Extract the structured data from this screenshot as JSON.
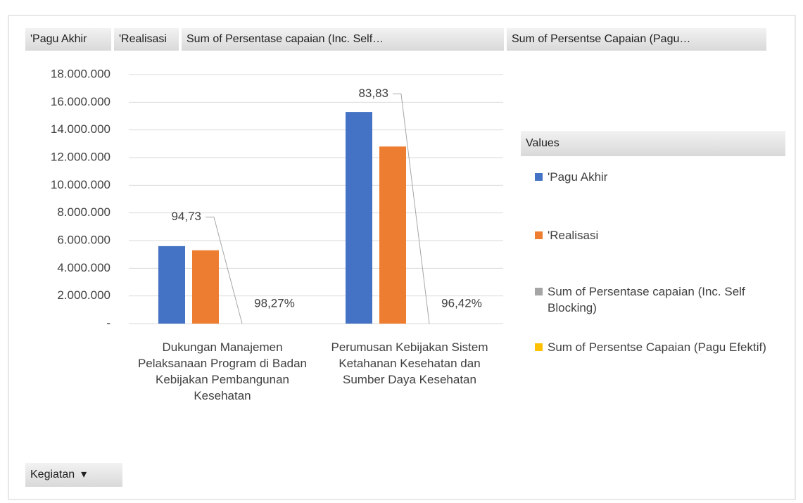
{
  "chart_data": {
    "type": "bar",
    "field_buttons": [
      "'Pagu Akhir",
      "'Realisasi",
      "Sum of Persentase capaian  (Inc. Self…",
      "Sum of Persentse Capaian (Pagu…"
    ],
    "axis_field_button": "Kegiatan",
    "legend_title": "Values",
    "legend": "right",
    "categories": [
      "Dukungan Manajemen Pelaksanaan Program di Badan Kebijakan Pembangunan Kesehatan",
      "Perumusan Kebijakan Sistem Ketahanan Kesehatan dan Sumber Daya Kesehatan"
    ],
    "series": [
      {
        "name": "'Pagu Akhir",
        "color": "#4472c4",
        "values": [
          5600000,
          15300000
        ]
      },
      {
        "name": "'Realisasi",
        "color": "#ed7d31",
        "values": [
          5300000,
          12800000
        ]
      },
      {
        "name": "Sum of Persentase capaian  (Inc. Self Blocking)",
        "color": "#a5a5a5",
        "values": [
          94.73,
          83.83
        ],
        "value_labels": [
          "94,73",
          "83,83"
        ]
      },
      {
        "name": "Sum of Persentse Capaian (Pagu Efektif)",
        "color": "#ffc000",
        "values": [
          98.27,
          96.42
        ],
        "value_labels": [
          "98,27%",
          "96,42%"
        ]
      }
    ],
    "ylim": [
      0,
      18000000
    ],
    "yticks": [
      {
        "value": 0,
        "label": "-"
      },
      {
        "value": 2000000,
        "label": "2.000.000"
      },
      {
        "value": 4000000,
        "label": "4.000.000"
      },
      {
        "value": 6000000,
        "label": "6.000.000"
      },
      {
        "value": 8000000,
        "label": "8.000.000"
      },
      {
        "value": 10000000,
        "label": "10.000.000"
      },
      {
        "value": 12000000,
        "label": "12.000.000"
      },
      {
        "value": 14000000,
        "label": "14.000.000"
      },
      {
        "value": 16000000,
        "label": "16.000.000"
      },
      {
        "value": 18000000,
        "label": "18.000.000"
      }
    ],
    "grid": true
  }
}
